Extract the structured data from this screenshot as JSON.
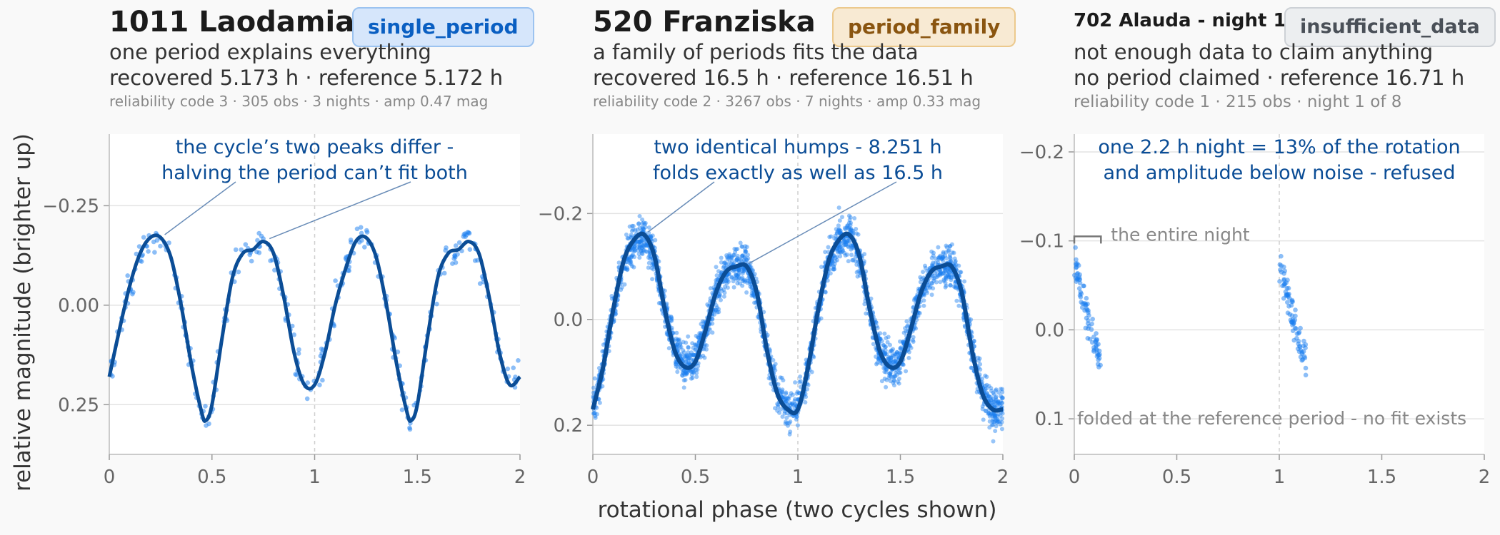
{
  "figure": {
    "xlabel": "rotational phase (two cycles shown)",
    "ylabel": "relative magnitude (brighter up)"
  },
  "panels": [
    {
      "name": "1011 Laodamia",
      "badge": "single_period",
      "subtitle": "one period explains everything",
      "line2": "recovered 5.173 h · reference 5.172 h",
      "line3": "reliability code 3 · 305 obs · 3 nights · amp 0.47 mag",
      "annotation": [
        "the cycle’s two peaks differ -",
        "halving the period can’t fit both"
      ],
      "colors": {
        "badge_bg": "#d6e6fb",
        "badge_border": "#9cc3f0",
        "badge_text": "#0a5fc2"
      }
    },
    {
      "name": "520 Franziska",
      "badge": "period_family",
      "subtitle": "a family of periods fits the data",
      "line2": "recovered 16.5 h · reference 16.51 h",
      "line3": "reliability code 2 · 3267 obs · 7 nights · amp 0.33 mag",
      "annotation": [
        "two identical humps - 8.251 h",
        "folds exactly as well as 16.5 h"
      ],
      "colors": {
        "badge_bg": "#f8ead3",
        "badge_border": "#ecc98d",
        "badge_text": "#8a5510"
      }
    },
    {
      "name": "702 Alauda - night 1",
      "badge": "insufficient_data",
      "subtitle": "not enough data to claim anything",
      "line2": "no period claimed · reference 16.71 h",
      "line3": "reliability code 1 · 215 obs · night 1 of 8",
      "annotation": [
        "one 2.2 h night = 13% of the rotation",
        "and amplitude below noise - refused"
      ],
      "bracket_label": "the entire night",
      "bottom_note": "folded at the reference period - no fit exists",
      "colors": {
        "badge_bg": "#eceef0",
        "badge_border": "#cdd1d6",
        "badge_text": "#4a5058"
      }
    }
  ],
  "chart_data": [
    {
      "type": "scatter",
      "title": "1011 Laodamia",
      "xlabel": "rotational phase (two cycles shown)",
      "ylabel": "relative magnitude (brighter up)",
      "xlim": [
        0,
        2
      ],
      "ylim": [
        0.375,
        -0.43
      ],
      "y_inverted": true,
      "xticks": [
        0,
        0.5,
        1,
        1.5,
        2
      ],
      "xtick_labels": [
        "0",
        "0.5",
        "1",
        "1.5",
        "2"
      ],
      "yticks": [
        -0.25,
        0.0,
        0.25
      ],
      "ytick_labels": [
        "−0.25",
        "0.00",
        "0.25"
      ],
      "fit_curve": {
        "x": [
          0,
          0.05,
          0.1,
          0.15,
          0.2,
          0.25,
          0.3,
          0.35,
          0.4,
          0.45,
          0.47,
          0.5,
          0.55,
          0.6,
          0.65,
          0.7,
          0.75,
          0.8,
          0.85,
          0.9,
          0.95,
          1.0,
          1.05,
          1.1,
          1.15,
          1.2,
          1.25,
          1.3,
          1.35,
          1.4,
          1.45,
          1.47,
          1.5,
          1.55,
          1.6,
          1.65,
          1.7,
          1.75,
          1.8,
          1.85,
          1.9,
          1.95,
          2.0
        ],
        "y": [
          0.18,
          0.06,
          -0.05,
          -0.13,
          -0.17,
          -0.17,
          -0.12,
          0.0,
          0.15,
          0.27,
          0.29,
          0.25,
          0.08,
          -0.07,
          -0.13,
          -0.14,
          -0.16,
          -0.13,
          -0.02,
          0.12,
          0.2,
          0.2,
          0.12,
          0.0,
          -0.09,
          -0.16,
          -0.17,
          -0.12,
          0.0,
          0.15,
          0.27,
          0.29,
          0.25,
          0.08,
          -0.07,
          -0.13,
          -0.14,
          -0.16,
          -0.13,
          -0.02,
          0.12,
          0.2,
          0.18
        ]
      },
      "points_scatter": 0.03,
      "n_points": 305,
      "point_coverage": [
        [
          0,
          2
        ]
      ]
    },
    {
      "type": "scatter",
      "title": "520 Franziska",
      "xlabel": "rotational phase (two cycles shown)",
      "ylabel": "relative magnitude (brighter up)",
      "xlim": [
        0,
        2
      ],
      "ylim": [
        0.255,
        -0.35
      ],
      "y_inverted": true,
      "xticks": [
        0,
        0.5,
        1,
        1.5,
        2
      ],
      "xtick_labels": [
        "0",
        "0.5",
        "1",
        "1.5",
        "2"
      ],
      "yticks": [
        -0.2,
        0.0,
        0.2
      ],
      "ytick_labels": [
        "−0.2",
        "0.0",
        "0.2"
      ],
      "fit_curve": {
        "x": [
          0,
          0.05,
          0.1,
          0.15,
          0.2,
          0.25,
          0.3,
          0.35,
          0.4,
          0.45,
          0.5,
          0.55,
          0.6,
          0.65,
          0.7,
          0.75,
          0.8,
          0.85,
          0.9,
          0.95,
          1.0,
          1.05,
          1.1,
          1.15,
          1.2,
          1.25,
          1.3,
          1.35,
          1.4,
          1.45,
          1.5,
          1.55,
          1.6,
          1.65,
          1.7,
          1.75,
          1.8,
          1.85,
          1.9,
          1.95,
          2.0
        ],
        "y": [
          0.17,
          0.09,
          -0.02,
          -0.11,
          -0.15,
          -0.16,
          -0.12,
          -0.02,
          0.06,
          0.09,
          0.08,
          0.02,
          -0.05,
          -0.09,
          -0.1,
          -0.1,
          -0.05,
          0.06,
          0.14,
          0.17,
          0.17,
          0.09,
          -0.02,
          -0.11,
          -0.15,
          -0.16,
          -0.12,
          -0.02,
          0.06,
          0.09,
          0.08,
          0.02,
          -0.05,
          -0.09,
          -0.1,
          -0.1,
          -0.05,
          0.06,
          0.14,
          0.17,
          0.17
        ]
      },
      "points_scatter": 0.025,
      "n_points": 3267,
      "point_coverage": [
        [
          0,
          2
        ]
      ]
    },
    {
      "type": "scatter",
      "title": "702 Alauda - night 1",
      "xlabel": "rotational phase (two cycles shown)",
      "ylabel": "relative magnitude (brighter up)",
      "xlim": [
        0,
        2
      ],
      "ylim": [
        0.14,
        -0.22
      ],
      "y_inverted": true,
      "xticks": [
        0,
        0.5,
        1,
        1.5,
        2
      ],
      "xtick_labels": [
        "0",
        "0.5",
        "1",
        "1.5",
        "2"
      ],
      "yticks": [
        -0.2,
        -0.1,
        0.0,
        0.1
      ],
      "ytick_labels": [
        "−0.2",
        "−0.1",
        "0.0",
        "0.1"
      ],
      "fit_curve": null,
      "night_trend": {
        "x": [
          0,
          0.13
        ],
        "y": [
          -0.07,
          0.04
        ]
      },
      "points_scatter": 0.015,
      "n_points": 215,
      "point_coverage": [
        [
          0,
          0.13
        ],
        [
          1,
          1.13
        ]
      ]
    }
  ],
  "colors": {
    "point": "#1a7ef0",
    "curve": "#0b4d96",
    "annotation": "#0b4d96",
    "leader": "#6a8db8",
    "grid": "#e3e3e3",
    "muted": "#888888"
  }
}
